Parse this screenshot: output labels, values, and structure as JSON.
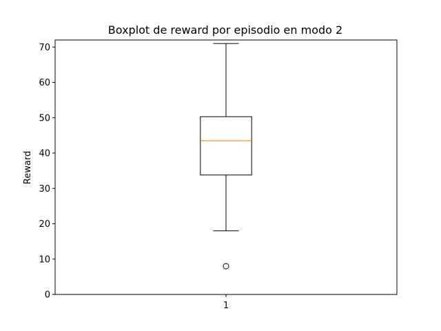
{
  "chart_data": {
    "type": "boxplot",
    "title": "Boxplot de reward por episodio en modo 2",
    "xlabel": "",
    "ylabel": "Reward",
    "categories": [
      "1"
    ],
    "ylim": [
      0,
      72
    ],
    "yticks": [
      0,
      10,
      20,
      30,
      40,
      50,
      60,
      70
    ],
    "boxes": [
      {
        "category": "1",
        "whisker_low": 18,
        "q1": 33.8,
        "median": 43.5,
        "q3": 50.3,
        "whisker_high": 71,
        "outliers": [
          8
        ]
      }
    ],
    "grid": false,
    "colors": {
      "box": "#000000",
      "median": "#ff7f0e",
      "whisker": "#000000",
      "outlier": "#000000"
    }
  }
}
